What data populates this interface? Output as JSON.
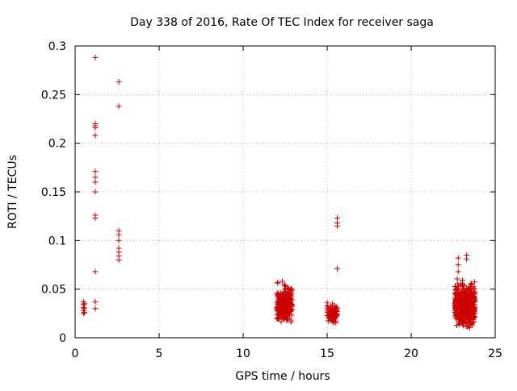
{
  "chart_data": {
    "type": "scatter",
    "title": "Day 338 of 2016, Rate Of TEC Index for receiver saga",
    "xlabel": "GPS time / hours",
    "ylabel": "ROTI / TECUs",
    "xlim": [
      0,
      25
    ],
    "ylim": [
      0,
      0.3
    ],
    "x_ticks": [
      {
        "value": 0,
        "label": "0"
      },
      {
        "value": 5,
        "label": "5"
      },
      {
        "value": 10,
        "label": "10"
      },
      {
        "value": 15,
        "label": "15"
      },
      {
        "value": 20,
        "label": "20"
      },
      {
        "value": 25,
        "label": "25"
      }
    ],
    "y_ticks": [
      {
        "value": 0,
        "label": "0"
      },
      {
        "value": 0.05,
        "label": "0.05"
      },
      {
        "value": 0.1,
        "label": "0.1"
      },
      {
        "value": 0.15,
        "label": "0.15"
      },
      {
        "value": 0.2,
        "label": "0.2"
      },
      {
        "value": 0.25,
        "label": "0.25"
      },
      {
        "value": 0.3,
        "label": "0.3"
      }
    ],
    "grid": true,
    "marker": "+",
    "series": [
      {
        "name": "ROTI",
        "color": "#cc0000",
        "points": [
          {
            "x": 0.5,
            "y": 0.025
          },
          {
            "x": 0.5,
            "y": 0.028
          },
          {
            "x": 0.5,
            "y": 0.031
          },
          {
            "x": 0.5,
            "y": 0.034
          },
          {
            "x": 0.5,
            "y": 0.037
          },
          {
            "x": 0.55,
            "y": 0.026
          },
          {
            "x": 0.55,
            "y": 0.03
          },
          {
            "x": 0.55,
            "y": 0.035
          },
          {
            "x": 1.2,
            "y": 0.288
          },
          {
            "x": 1.2,
            "y": 0.22
          },
          {
            "x": 1.2,
            "y": 0.218
          },
          {
            "x": 1.2,
            "y": 0.216
          },
          {
            "x": 1.2,
            "y": 0.208
          },
          {
            "x": 1.2,
            "y": 0.171
          },
          {
            "x": 1.2,
            "y": 0.165
          },
          {
            "x": 1.2,
            "y": 0.16
          },
          {
            "x": 1.2,
            "y": 0.15
          },
          {
            "x": 1.2,
            "y": 0.126
          },
          {
            "x": 1.2,
            "y": 0.123
          },
          {
            "x": 1.2,
            "y": 0.068
          },
          {
            "x": 1.2,
            "y": 0.037
          },
          {
            "x": 1.2,
            "y": 0.03
          },
          {
            "x": 2.6,
            "y": 0.263
          },
          {
            "x": 2.6,
            "y": 0.238
          },
          {
            "x": 2.6,
            "y": 0.11
          },
          {
            "x": 2.6,
            "y": 0.106
          },
          {
            "x": 2.6,
            "y": 0.1
          },
          {
            "x": 2.6,
            "y": 0.092
          },
          {
            "x": 2.6,
            "y": 0.088
          },
          {
            "x": 2.6,
            "y": 0.084
          },
          {
            "x": 2.6,
            "y": 0.08
          },
          {
            "x": 15.6,
            "y": 0.123
          },
          {
            "x": 15.6,
            "y": 0.118
          },
          {
            "x": 15.6,
            "y": 0.115
          },
          {
            "x": 15.6,
            "y": 0.071
          },
          {
            "x": 22.8,
            "y": 0.082
          },
          {
            "x": 22.8,
            "y": 0.075
          },
          {
            "x": 22.8,
            "y": 0.068
          },
          {
            "x": 23.3,
            "y": 0.085
          },
          {
            "x": 23.3,
            "y": 0.081
          }
        ],
        "clusters": [
          {
            "x_range": [
              12.0,
              12.9
            ],
            "y_range": [
              0.013,
              0.06
            ],
            "count": 260
          },
          {
            "x_range": [
              15.0,
              15.6
            ],
            "y_range": [
              0.013,
              0.04
            ],
            "count": 90
          },
          {
            "x_range": [
              22.6,
              23.8
            ],
            "y_range": [
              0.008,
              0.065
            ],
            "count": 520
          }
        ]
      }
    ]
  }
}
